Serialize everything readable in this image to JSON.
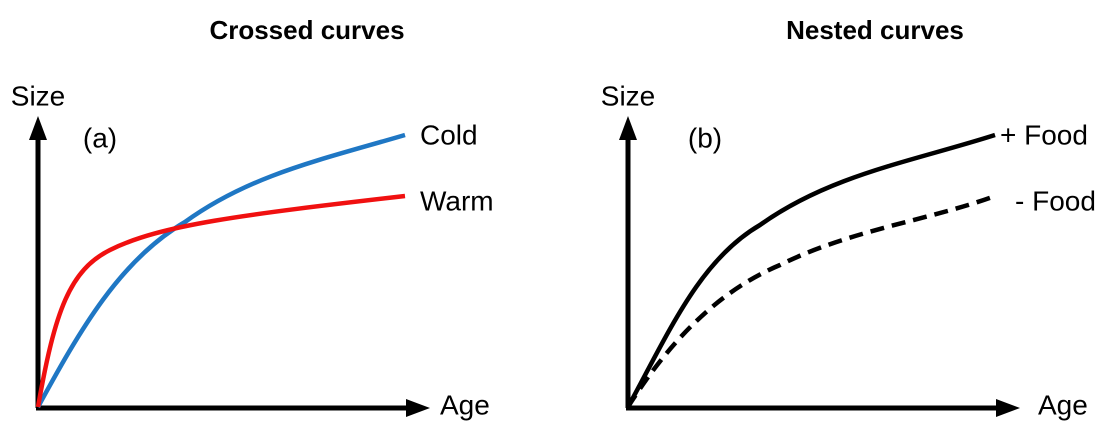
{
  "panels": [
    {
      "title": "Crossed curves",
      "panel_label": "(a)",
      "y_label": "Size",
      "x_label": "Age",
      "curves": [
        {
          "label": "Cold"
        },
        {
          "label": "Warm"
        }
      ]
    },
    {
      "title": "Nested curves",
      "panel_label": "(b)",
      "y_label": "Size",
      "x_label": "Age",
      "curves": [
        {
          "label": "+ Food"
        },
        {
          "label": "- Food"
        }
      ]
    }
  ]
}
